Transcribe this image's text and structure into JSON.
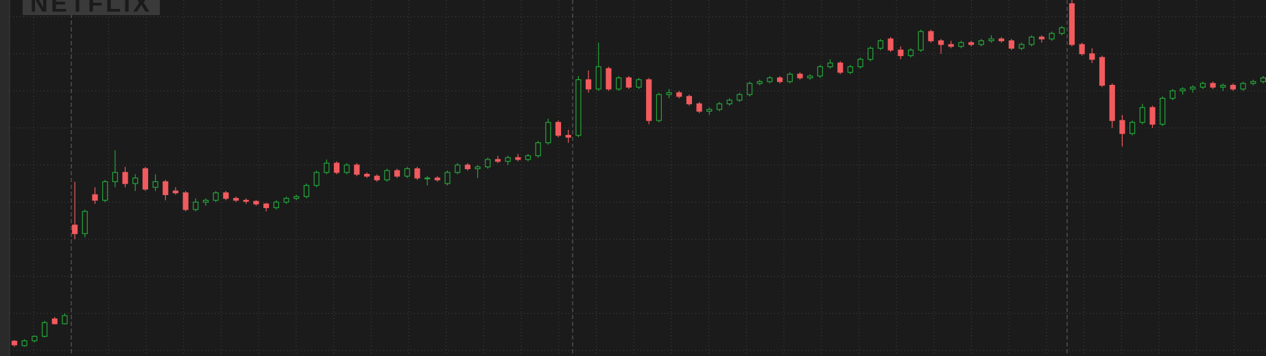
{
  "chart_data": {
    "type": "candlestick",
    "logo": "NETFLIX",
    "ylim": [
      -1.5,
      94.5
    ],
    "yticks": [
      0,
      10,
      20,
      30,
      40,
      50,
      60,
      70,
      80,
      90
    ],
    "grid": true,
    "up_color": "#25a83c",
    "down_color": "#f25b5e",
    "open": [
      2.5,
      1.3,
      2.6,
      3.8,
      8.5,
      7.2,
      33.8,
      31.5,
      42,
      40.5,
      45.5,
      48,
      45,
      49,
      44,
      45.5,
      43,
      42.5,
      38,
      40,
      40.5,
      42.5,
      41,
      40.5,
      40.2,
      39.5,
      38.5,
      40,
      41,
      41.5,
      44.5,
      48,
      50.5,
      48,
      50,
      47.5,
      47,
      46,
      48.5,
      47,
      49,
      46.5,
      46.5,
      45,
      48,
      50,
      49,
      49.5,
      51.5,
      51,
      52,
      51.5,
      52.5,
      56,
      61.5,
      58,
      58,
      73,
      70.5,
      76,
      70.5,
      73.5,
      71,
      73,
      62,
      69,
      69.5,
      68.5,
      66.5,
      64.5,
      65,
      66.5,
      67.5,
      69,
      72,
      72.5,
      73.5,
      72.5,
      74.5,
      73.5,
      74,
      76.5,
      77.5,
      75,
      76.5,
      78.5,
      81.5,
      84,
      81,
      79.5,
      81,
      86,
      83.5,
      82.5,
      82,
      83,
      82.5,
      83.5,
      84,
      83.5,
      81.5,
      82.5,
      84.5,
      84,
      85.5,
      93.5,
      82.5,
      80,
      79,
      71.5,
      62,
      58.5,
      61.5,
      65.5,
      61,
      68,
      70,
      70.5,
      71,
      72,
      71,
      71.5,
      70.5,
      72,
      72.5
    ],
    "high": [
      2.8,
      3.0,
      4.0,
      8.0,
      9.0,
      10.0,
      45.5,
      38,
      44,
      46,
      54,
      49.5,
      47.5,
      49.5,
      47.5,
      46,
      44,
      43,
      41,
      41,
      43,
      43,
      41.5,
      41,
      40.5,
      39.8,
      40.5,
      41.5,
      42,
      45,
      48.5,
      51.5,
      51,
      50.5,
      50.5,
      48,
      47.5,
      49,
      49,
      49.5,
      49.5,
      47,
      47,
      48.5,
      50.5,
      50.5,
      50,
      52,
      52.5,
      52.5,
      53,
      53,
      56.5,
      62.5,
      62,
      59.5,
      74,
      75.5,
      83,
      76.5,
      74,
      74,
      73.5,
      73.5,
      69.5,
      70.5,
      70,
      69,
      67,
      65.5,
      67,
      68,
      69.5,
      72.5,
      73,
      74,
      74,
      75,
      75,
      74.5,
      77,
      78.5,
      78,
      77,
      79,
      82,
      84,
      84.5,
      82,
      81.5,
      86.5,
      86.5,
      84,
      83.5,
      83.5,
      83.5,
      84,
      85,
      84.5,
      84,
      83,
      85,
      85,
      86,
      87.5,
      94.5,
      83,
      81.5,
      79.5,
      72,
      63.5,
      62,
      66.5,
      66,
      68.5,
      70.5,
      71,
      71.5,
      72.5,
      72.5,
      72,
      72,
      72.5,
      73,
      74
    ],
    "low": [
      1.0,
      1.0,
      2.2,
      3.5,
      7.0,
      7.0,
      30,
      30.5,
      39.5,
      40,
      44,
      44,
      43,
      43,
      43,
      40.5,
      42,
      37.5,
      37.5,
      39,
      40,
      40.5,
      40,
      39.5,
      39,
      37.5,
      38,
      39.5,
      40.5,
      41,
      44,
      47.5,
      47.5,
      47.5,
      47,
      46.5,
      45.5,
      45.5,
      46.5,
      46.5,
      46,
      44.5,
      45.5,
      44.5,
      47.5,
      48.5,
      46.5,
      49,
      50.5,
      50,
      51,
      51,
      52,
      55.5,
      57.5,
      56,
      57.5,
      69.5,
      70,
      70,
      70,
      70.5,
      70.5,
      61,
      61.5,
      68,
      68,
      66,
      64,
      63.5,
      64.5,
      66,
      67,
      68.5,
      71.5,
      72,
      72,
      72,
      73,
      73,
      73.5,
      76,
      74.5,
      74.5,
      76,
      78,
      81,
      80.5,
      78.5,
      79,
      80.5,
      83,
      80,
      81.5,
      81.5,
      82,
      82,
      83,
      83,
      81,
      81,
      82,
      83,
      83.5,
      85,
      82,
      79.5,
      77.5,
      71,
      60,
      55,
      58,
      61,
      60,
      60.5,
      67.5,
      69,
      69.5,
      70.5,
      70.5,
      70,
      70,
      70,
      71.5,
      72
    ],
    "close": [
      1.5,
      2.6,
      3.8,
      7.5,
      7.2,
      9.4,
      31.5,
      37.5,
      40.5,
      45.5,
      48,
      45,
      46.5,
      43.5,
      45.5,
      42,
      42.5,
      38,
      40,
      40.5,
      42.5,
      41,
      40.5,
      40.2,
      39.5,
      38.5,
      40,
      41,
      41.5,
      44.5,
      48,
      50.5,
      48,
      50,
      47.5,
      47,
      46,
      48.5,
      47,
      49,
      46.5,
      46.5,
      46,
      48,
      50,
      49,
      49.5,
      51.5,
      51,
      52,
      51.5,
      52.5,
      56,
      61.5,
      58,
      57.5,
      73,
      70.5,
      76.5,
      70.5,
      73.5,
      71,
      73,
      62,
      69,
      69.5,
      68.5,
      66.5,
      64.5,
      65,
      66.5,
      67.5,
      69,
      72,
      72.5,
      73.5,
      72.5,
      74.5,
      73.5,
      74,
      76.5,
      77.5,
      75,
      76.5,
      78.5,
      81.5,
      83.5,
      81,
      79.5,
      81,
      86,
      83.5,
      82.5,
      82,
      83,
      82.5,
      83.5,
      84,
      83.5,
      81.5,
      82.5,
      84.5,
      84,
      85.5,
      87,
      82.5,
      80,
      78.5,
      71.5,
      62,
      58.5,
      61.5,
      65.5,
      61,
      68,
      70,
      70.5,
      71,
      72,
      71,
      71.5,
      70.5,
      72,
      72.5,
      73.5
    ]
  }
}
